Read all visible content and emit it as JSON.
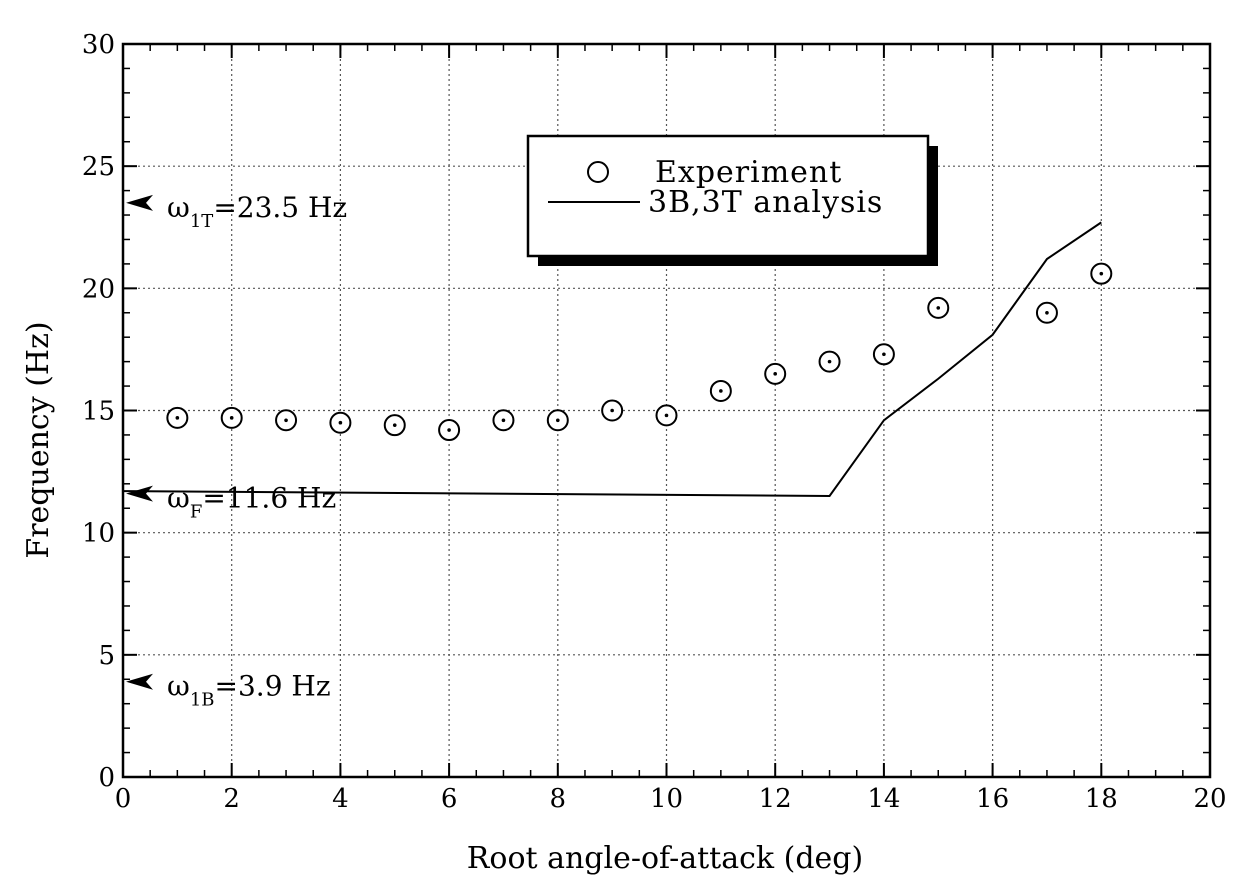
{
  "chart_data": {
    "type": "scatter",
    "title": "",
    "xlabel": "Root angle-of-attack (deg)",
    "ylabel": "Frequency (Hz)",
    "xlim": [
      0,
      20
    ],
    "ylim": [
      0,
      30
    ],
    "xticks": [
      0,
      2,
      4,
      6,
      8,
      10,
      12,
      14,
      16,
      18,
      20
    ],
    "yticks": [
      0,
      5,
      10,
      15,
      20,
      25,
      30
    ],
    "grid": true,
    "legend_position": "top-center",
    "series": [
      {
        "name": "Experiment",
        "kind": "scatter",
        "marker": "circle-with-dot",
        "x": [
          1,
          2,
          3,
          4,
          5,
          6,
          7,
          8,
          9,
          10,
          11,
          12,
          13,
          14,
          15,
          17,
          18
        ],
        "y": [
          14.7,
          14.7,
          14.6,
          14.5,
          14.4,
          14.2,
          14.6,
          14.6,
          15.0,
          14.8,
          15.8,
          16.5,
          17.0,
          17.3,
          19.2,
          19.0,
          20.6
        ]
      },
      {
        "name": "3B,3T analysis",
        "kind": "line",
        "x": [
          0,
          13,
          14,
          15,
          16,
          17,
          18
        ],
        "y": [
          11.7,
          11.5,
          14.6,
          16.3,
          18.1,
          21.2,
          22.7
        ]
      }
    ],
    "annotations": [
      {
        "symbol": "ω",
        "subscript": "1T",
        "rest": "=23.5 Hz",
        "y": 23.5
      },
      {
        "symbol": "ω",
        "subscript": "F",
        "rest": "=11.6 Hz",
        "y": 11.6
      },
      {
        "symbol": "ω",
        "subscript": "1B",
        "rest": "=3.9 Hz",
        "y": 3.9
      }
    ]
  },
  "colors": {
    "ink": "#000000",
    "grid": "#555555",
    "background": "#ffffff"
  }
}
